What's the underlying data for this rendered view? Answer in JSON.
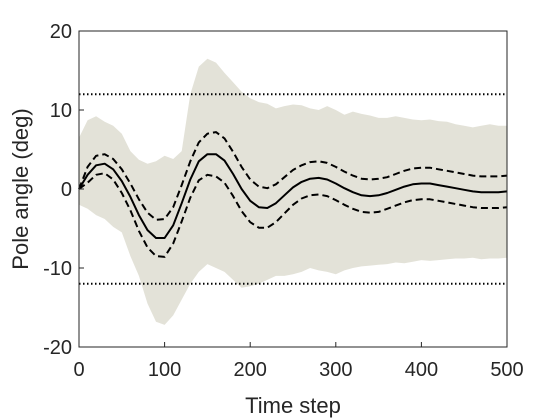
{
  "chart_data": {
    "type": "line",
    "title": "",
    "xlabel": "Time step",
    "ylabel": "Pole angle (deg)",
    "xlim": [
      0,
      500
    ],
    "ylim": [
      -20,
      20
    ],
    "x_ticks": [
      0,
      100,
      200,
      300,
      400,
      500
    ],
    "y_ticks": [
      -20,
      -10,
      0,
      10,
      20
    ],
    "x_tick_labels": [
      "0",
      "100",
      "200",
      "300",
      "400",
      "500"
    ],
    "y_tick_labels": [
      "-20",
      "-10",
      "0",
      "10",
      "20"
    ],
    "grid": false,
    "legend": "none",
    "thresholds": [
      12,
      -12
    ],
    "x": [
      0,
      10,
      20,
      30,
      40,
      50,
      60,
      70,
      80,
      90,
      100,
      110,
      120,
      130,
      140,
      150,
      160,
      170,
      180,
      190,
      200,
      210,
      220,
      230,
      240,
      250,
      260,
      270,
      280,
      290,
      300,
      310,
      320,
      330,
      340,
      350,
      360,
      370,
      380,
      390,
      400,
      410,
      420,
      430,
      440,
      450,
      460,
      470,
      480,
      490,
      500
    ],
    "series": [
      {
        "role": "mean",
        "style": "solid",
        "values": [
          0,
          1.8,
          3.0,
          3.2,
          2.5,
          1.0,
          -1.0,
          -3.3,
          -5.2,
          -6.2,
          -6.2,
          -4.6,
          -1.8,
          1.2,
          3.5,
          4.4,
          4.4,
          3.6,
          1.9,
          0.0,
          -1.5,
          -2.3,
          -2.4,
          -1.8,
          -0.8,
          0.2,
          0.9,
          1.3,
          1.4,
          1.2,
          0.7,
          0.1,
          -0.4,
          -0.8,
          -0.9,
          -0.8,
          -0.5,
          -0.1,
          0.3,
          0.6,
          0.7,
          0.7,
          0.5,
          0.3,
          0.1,
          -0.1,
          -0.3,
          -0.4,
          -0.4,
          -0.4,
          -0.3
        ]
      },
      {
        "role": "upper",
        "style": "dashed",
        "values": [
          0,
          2.8,
          4.2,
          4.4,
          3.8,
          2.5,
          0.7,
          -1.3,
          -3.0,
          -3.9,
          -3.8,
          -2.3,
          0.5,
          3.5,
          5.9,
          7.0,
          7.2,
          6.4,
          4.7,
          2.8,
          1.2,
          0.3,
          0.1,
          0.6,
          1.5,
          2.4,
          3.0,
          3.4,
          3.5,
          3.3,
          2.8,
          2.2,
          1.7,
          1.3,
          1.2,
          1.3,
          1.5,
          1.9,
          2.3,
          2.6,
          2.7,
          2.7,
          2.5,
          2.3,
          2.1,
          1.9,
          1.7,
          1.6,
          1.6,
          1.6,
          1.7
        ]
      },
      {
        "role": "lower",
        "style": "dashed",
        "values": [
          0,
          0.8,
          1.8,
          2.0,
          1.2,
          -0.5,
          -2.7,
          -5.3,
          -7.4,
          -8.5,
          -8.6,
          -6.9,
          -4.1,
          -1.1,
          1.1,
          1.8,
          1.6,
          0.8,
          -0.9,
          -2.8,
          -4.2,
          -4.9,
          -4.9,
          -4.2,
          -3.1,
          -2.0,
          -1.2,
          -0.8,
          -0.7,
          -0.9,
          -1.4,
          -2.0,
          -2.5,
          -2.9,
          -3.0,
          -2.9,
          -2.5,
          -2.1,
          -1.7,
          -1.4,
          -1.3,
          -1.3,
          -1.5,
          -1.7,
          -1.9,
          -2.1,
          -2.3,
          -2.4,
          -2.4,
          -2.4,
          -2.3
        ]
      }
    ],
    "band": {
      "color": "#e3e2d8",
      "x": [
        0,
        10,
        20,
        30,
        40,
        50,
        60,
        70,
        80,
        90,
        100,
        110,
        120,
        130,
        140,
        150,
        160,
        170,
        180,
        190,
        200,
        210,
        220,
        230,
        240,
        250,
        260,
        270,
        280,
        290,
        300,
        310,
        320,
        330,
        340,
        350,
        360,
        370,
        380,
        390,
        400,
        410,
        420,
        430,
        440,
        450,
        460,
        470,
        480,
        490,
        500
      ],
      "upper": [
        6.5,
        8.7,
        9.2,
        8.5,
        8.0,
        7.0,
        4.8,
        3.7,
        3.2,
        3.5,
        4.2,
        3.8,
        4.8,
        12.0,
        15.5,
        16.5,
        16.0,
        14.7,
        13.5,
        12.3,
        11.5,
        11.0,
        10.8,
        10.2,
        10.5,
        10.7,
        10.6,
        10.2,
        10.0,
        10.5,
        10.0,
        9.4,
        9.8,
        9.5,
        9.3,
        9.0,
        9.0,
        9.2,
        9.0,
        8.8,
        8.7,
        8.8,
        8.6,
        8.5,
        8.2,
        8.0,
        7.8,
        8.0,
        8.2,
        8.0,
        8.0
      ],
      "lower": [
        -2.0,
        -2.5,
        -3.3,
        -3.8,
        -4.8,
        -5.5,
        -8.5,
        -11.0,
        -14.5,
        -16.8,
        -17.2,
        -16.0,
        -14.0,
        -12.0,
        -10.5,
        -9.5,
        -10.0,
        -10.5,
        -11.5,
        -12.5,
        -12.3,
        -12.0,
        -11.5,
        -11.0,
        -11.0,
        -10.8,
        -10.5,
        -10.0,
        -10.3,
        -10.5,
        -10.8,
        -10.3,
        -10.0,
        -9.8,
        -9.7,
        -9.6,
        -9.5,
        -9.3,
        -9.4,
        -9.2,
        -9.0,
        -9.1,
        -9.0,
        -8.9,
        -8.8,
        -8.8,
        -8.7,
        -8.9,
        -8.8,
        -8.8,
        -8.7
      ]
    }
  }
}
